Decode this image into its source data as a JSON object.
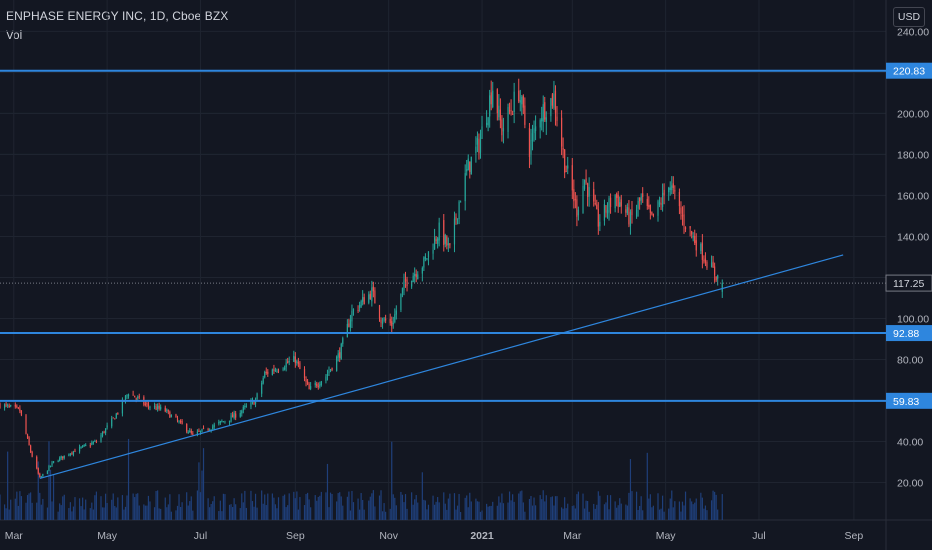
{
  "header": {
    "title": "ENPHASE ENERGY INC, 1D, Cboe BZX",
    "volume_label": "Vol",
    "currency": "USD"
  },
  "colors": {
    "background": "#131722",
    "grid": "#1f2430",
    "up": "#26a69a",
    "down": "#ef5350",
    "level_line": "#2e86de",
    "volume": "#1f3f7a",
    "axis_text": "#b2b5be"
  },
  "chart_data": {
    "type": "candlestick",
    "symbol": "ENPHASE ENERGY INC",
    "interval": "1D",
    "exchange": "Cboe BZX",
    "ylim": [
      10,
      248
    ],
    "y_ticks": [
      20,
      40,
      60,
      80,
      100,
      140,
      160,
      180,
      200,
      240
    ],
    "y_tick_labels": [
      "20.00",
      "40.00",
      "60.00",
      "80.00",
      "100.00",
      "140.00",
      "160.00",
      "180.00",
      "200.00",
      "240.00"
    ],
    "x_ticks": [
      "Mar",
      "May",
      "Jul",
      "Sep",
      "Nov",
      "2021",
      "Mar",
      "May",
      "Jul",
      "Sep"
    ],
    "x_tick_dates": [
      "2020-03-01",
      "2020-05-01",
      "2020-07-01",
      "2020-09-01",
      "2020-11-01",
      "2021-01-01",
      "2021-03-01",
      "2021-05-01",
      "2021-07-01",
      "2021-09-01"
    ],
    "x_range": [
      "2020-02-21",
      "2021-09-22"
    ],
    "horizontal_levels": [
      {
        "value": 220.83,
        "label": "220.83"
      },
      {
        "value": 92.88,
        "label": "92.88"
      },
      {
        "value": 59.83,
        "label": "59.83"
      }
    ],
    "last_price": {
      "value": 117.25,
      "label": "117.25"
    },
    "trendline": {
      "start": {
        "date": "2020-03-18",
        "value": 22
      },
      "end": {
        "date": "2021-08-25",
        "value": 131
      }
    },
    "price_path": [
      [
        "2020-02-21",
        58
      ],
      [
        "2020-03-05",
        55
      ],
      [
        "2020-03-12",
        35
      ],
      [
        "2020-03-18",
        22
      ],
      [
        "2020-03-27",
        30
      ],
      [
        "2020-04-08",
        35
      ],
      [
        "2020-04-24",
        40
      ],
      [
        "2020-05-06",
        52
      ],
      [
        "2020-05-15",
        64
      ],
      [
        "2020-05-26",
        58
      ],
      [
        "2020-06-08",
        55
      ],
      [
        "2020-06-22",
        46
      ],
      [
        "2020-06-26",
        43
      ],
      [
        "2020-07-08",
        47
      ],
      [
        "2020-07-22",
        52
      ],
      [
        "2020-08-06",
        60
      ],
      [
        "2020-08-12",
        73
      ],
      [
        "2020-08-26",
        78
      ],
      [
        "2020-09-01",
        80
      ],
      [
        "2020-09-10",
        65
      ],
      [
        "2020-09-21",
        72
      ],
      [
        "2020-09-30",
        83
      ],
      [
        "2020-10-08",
        103
      ],
      [
        "2020-10-21",
        113
      ],
      [
        "2020-10-27",
        100
      ],
      [
        "2020-11-03",
        97
      ],
      [
        "2020-11-12",
        118
      ],
      [
        "2020-11-24",
        127
      ],
      [
        "2020-12-04",
        143
      ],
      [
        "2020-12-11",
        133
      ],
      [
        "2020-12-17",
        157
      ],
      [
        "2020-12-23",
        174
      ],
      [
        "2020-12-30",
        185
      ],
      [
        "2021-01-08",
        213
      ],
      [
        "2021-01-14",
        192
      ],
      [
        "2021-01-25",
        211
      ],
      [
        "2021-02-01",
        183
      ],
      [
        "2021-02-08",
        200
      ],
      [
        "2021-02-17",
        208
      ],
      [
        "2021-02-24",
        176
      ],
      [
        "2021-03-04",
        153
      ],
      [
        "2021-03-09",
        168
      ],
      [
        "2021-03-18",
        147
      ],
      [
        "2021-03-29",
        160
      ],
      [
        "2021-04-08",
        148
      ],
      [
        "2021-04-15",
        158
      ],
      [
        "2021-04-22",
        148
      ],
      [
        "2021-04-30",
        160
      ],
      [
        "2021-05-03",
        167
      ],
      [
        "2021-05-12",
        149
      ],
      [
        "2021-05-21",
        137
      ],
      [
        "2021-06-01",
        123
      ],
      [
        "2021-06-07",
        117.25
      ]
    ],
    "volume_note": "daily volume bars along the bottom"
  }
}
